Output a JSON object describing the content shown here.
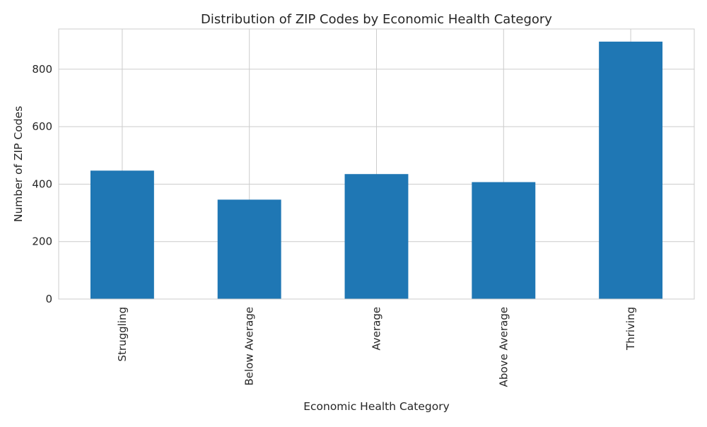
{
  "chart_data": {
    "type": "bar",
    "title": "Distribution of ZIP Codes by Economic Health Category",
    "xlabel": "Economic Health Category",
    "ylabel": "Number of ZIP Codes",
    "categories": [
      "Struggling",
      "Below Average",
      "Average",
      "Above Average",
      "Thriving"
    ],
    "values": [
      447,
      346,
      435,
      407,
      896
    ],
    "ylim": [
      0,
      940
    ],
    "yticks": [
      0,
      200,
      400,
      600,
      800
    ],
    "grid": true,
    "legend": "none",
    "colors": {
      "bar": "#1f77b4",
      "grid": "#cccccc",
      "frame": "#cccccc"
    }
  }
}
